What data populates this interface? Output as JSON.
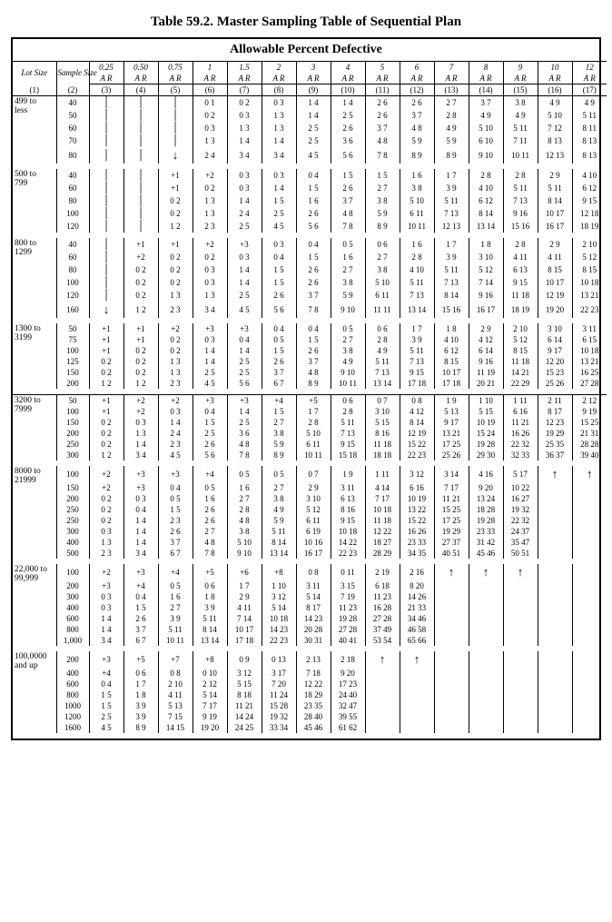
{
  "title": "Table 59.2. Master Sampling Table of Sequential Plan",
  "subtitle": "Allowable Percent Defective",
  "header": {
    "lot": "Lot Size",
    "sample": "Sample Size",
    "ar": "A R"
  },
  "pct_cols": [
    "0.25",
    "0.50",
    "0.75",
    "1",
    "1.5",
    "2",
    "3",
    "4",
    "5",
    "6",
    "7",
    "8",
    "9",
    "10",
    "12"
  ],
  "col_idx": [
    "(1)",
    "(2)",
    "(3)",
    "(4)",
    "(5)",
    "(6)",
    "(7)",
    "(8)",
    "(9)",
    "(10)",
    "(11)",
    "(12)",
    "(13)",
    "(14)",
    "(15)",
    "(16)",
    "(17)"
  ],
  "groups": [
    {
      "lot": "499 to less",
      "rows": [
        {
          "s": "40",
          "v": [
            "|",
            "|",
            "|",
            "0 1",
            "0 2",
            "0 3",
            "1 4",
            "1 4",
            "2 6",
            "2 6",
            "2 7",
            "3 7",
            "3 8",
            "4 9",
            "4 9"
          ]
        },
        {
          "s": "50",
          "v": [
            "|",
            "|",
            "|",
            "0 2",
            "0 3",
            "1 3",
            "1 4",
            "2 5",
            "2 6",
            "3 7",
            "2 8",
            "4 9",
            "4 9",
            "5 10",
            "5 11"
          ]
        },
        {
          "s": "60",
          "v": [
            "|",
            "|",
            "|",
            "0 3",
            "1 3",
            "1 3",
            "2 5",
            "2 6",
            "3 7",
            "4 8",
            "4 9",
            "5 10",
            "5 11",
            "7 12",
            "8 11"
          ]
        },
        {
          "s": "70",
          "v": [
            "|",
            "|",
            "|",
            "1 3",
            "1 4",
            "1 4",
            "2 5",
            "3 6",
            "4 8",
            "5 9",
            "5 9",
            "6 10",
            "7 11",
            "8 13",
            "8 13"
          ]
        },
        {
          "s": "80",
          "v": [
            "|",
            "|",
            "↓",
            "2 4",
            "3 4",
            "3 4",
            "4 5",
            "5 6",
            "7 8",
            "8 9",
            "8 9",
            "9 10",
            "10 11",
            "12 13",
            "8 13"
          ]
        }
      ]
    },
    {
      "lot": "500 to 799",
      "rows": [
        {
          "s": "40",
          "v": [
            "|",
            "|",
            "+1",
            "+2",
            "0 3",
            "0 3",
            "0 4",
            "1 5",
            "1 5",
            "1 6",
            "1 7",
            "2 8",
            "2 8",
            "2 9",
            "4 10"
          ]
        },
        {
          "s": "60",
          "v": [
            "|",
            "|",
            "+1",
            "0 2",
            "0 3",
            "1 4",
            "1 5",
            "2 6",
            "2 7",
            "3 8",
            "3 9",
            "4 10",
            "5 11",
            "5 11",
            "6 12"
          ]
        },
        {
          "s": "80",
          "v": [
            "|",
            "|",
            "0 2",
            "1 3",
            "1 4",
            "1 5",
            "1 6",
            "3 7",
            "3 8",
            "5 10",
            "5 11",
            "6 12",
            "7 13",
            "8 14",
            "9 15"
          ]
        },
        {
          "s": "100",
          "v": [
            "|",
            "|",
            "0 2",
            "1 3",
            "2 4",
            "2 5",
            "2 6",
            "4 8",
            "5 9",
            "6 11",
            "7 13",
            "8 14",
            "9 16",
            "10 17",
            "12 18"
          ]
        },
        {
          "s": "120",
          "v": [
            "|",
            "|",
            "1 2",
            "2 3",
            "2 5",
            "4 5",
            "5 6",
            "7 8",
            "8 9",
            "10 11",
            "12 13",
            "13 14",
            "15 16",
            "16 17",
            "18 19"
          ]
        }
      ]
    },
    {
      "lot": "800 to 1299",
      "rows": [
        {
          "s": "40",
          "v": [
            "|",
            "+1",
            "+1",
            "+2",
            "+3",
            "0 3",
            "0 4",
            "0 5",
            "0 6",
            "1 6",
            "1 7",
            "1 8",
            "2 8",
            "2 9",
            "2 10"
          ]
        },
        {
          "s": "60",
          "v": [
            "|",
            "+2",
            "0 2",
            "0 2",
            "0 3",
            "0 4",
            "1 5",
            "1 6",
            "2 7",
            "2 8",
            "3 9",
            "3 10",
            "4 11",
            "4 11",
            "5 12"
          ]
        },
        {
          "s": "80",
          "v": [
            "|",
            "0 2",
            "0 2",
            "0 3",
            "1 4",
            "1 5",
            "2 6",
            "2 7",
            "3 8",
            "4 10",
            "5 11",
            "5 12",
            "6 13",
            "8 15",
            "8 15"
          ]
        },
        {
          "s": "100",
          "v": [
            "|",
            "0 2",
            "0 2",
            "0 3",
            "1 4",
            "1 5",
            "2 6",
            "3 8",
            "5 10",
            "5 11",
            "7 13",
            "7 14",
            "9 15",
            "10 17",
            "10 18"
          ]
        },
        {
          "s": "120",
          "v": [
            "|",
            "0 2",
            "1 3",
            "1 3",
            "2 5",
            "2 6",
            "3 7",
            "5 9",
            "6 11",
            "7 13",
            "8 14",
            "9 16",
            "11 18",
            "12 19",
            "13 21"
          ]
        },
        {
          "s": "160",
          "v": [
            "↓",
            "1 2",
            "2 3",
            "3 4",
            "4 5",
            "5 6",
            "7 8",
            "9 10",
            "11 11",
            "13 14",
            "15 16",
            "16 17",
            "18 19",
            "19 20",
            "22 23"
          ]
        }
      ]
    },
    {
      "lot": "1300 to 3199",
      "rows": [
        {
          "s": "50",
          "v": [
            "+1",
            "+1",
            "+2",
            "+3",
            "+3",
            "0 4",
            "0 4",
            "0 5",
            "0 6",
            "1 7",
            "1 8",
            "2 9",
            "2 10",
            "3 10",
            "3 11"
          ]
        },
        {
          "s": "75",
          "v": [
            "+1",
            "+1",
            "0 2",
            "0 3",
            "0 4",
            "0 5",
            "1 5",
            "2 7",
            "2 8",
            "3 9",
            "4 10",
            "4 12",
            "5 12",
            "6 14",
            "6 15"
          ]
        },
        {
          "s": "100",
          "v": [
            "+1",
            "0 2",
            "0 2",
            "1 4",
            "1 4",
            "1 5",
            "2 6",
            "3 8",
            "4 9",
            "5 11",
            "6 12",
            "6 14",
            "8 15",
            "9 17",
            "10 18"
          ]
        },
        {
          "s": "125",
          "v": [
            "0 2",
            "0 2",
            "1 3",
            "1 4",
            "2 5",
            "2 6",
            "3 7",
            "4 9",
            "5 11",
            "7 13",
            "8 15",
            "9 16",
            "11 18",
            "12 20",
            "13 21"
          ]
        },
        {
          "s": "150",
          "v": [
            "0 2",
            "0 2",
            "1 3",
            "2 5",
            "2 5",
            "3 7",
            "4 8",
            "9 10",
            "7 13",
            "9 15",
            "10 17",
            "11 19",
            "14 21",
            "15 23",
            "16 25"
          ]
        },
        {
          "s": "200",
          "v": [
            "1 2",
            "1 2",
            "2 3",
            "4 5",
            "5 6",
            "6 7",
            "8 9",
            "10 11",
            "13 14",
            "17 18",
            "17 18",
            "20 21",
            "22 29",
            "25 26",
            "27 28"
          ]
        }
      ]
    }
  ],
  "groups2": [
    {
      "lot": "3200 to 7999",
      "rows": [
        {
          "s": "50",
          "v": [
            "+1",
            "+2",
            "+2",
            "+3",
            "+3",
            "+4",
            "+5",
            "0 6",
            "0 7",
            "0 8",
            "1 9",
            "1 10",
            "1 11",
            "2 11",
            "2 12"
          ]
        },
        {
          "s": "100",
          "v": [
            "+1",
            "+2",
            "0 3",
            "0 4",
            "1 4",
            "1 5",
            "1 7",
            "2 8",
            "3 10",
            "4 12",
            "5 13",
            "5 15",
            "6 16",
            "8 17",
            "9 19"
          ]
        },
        {
          "s": "150",
          "v": [
            "0 2",
            "0 3",
            "1 4",
            "1 5",
            "2 5",
            "2 7",
            "2 8",
            "5 11",
            "5 15",
            "8 14",
            "9 17",
            "10 19",
            "11 21",
            "12 23",
            "15 25"
          ]
        },
        {
          "s": "200",
          "v": [
            "0 2",
            "1 3",
            "2 4",
            "2 5",
            "3 6",
            "3 8",
            "5 10",
            "7 13",
            "8 16",
            "12 19",
            "13 21",
            "15 24",
            "16 26",
            "19 29",
            "21 31"
          ]
        },
        {
          "s": "250",
          "v": [
            "0 2",
            "1 4",
            "2 3",
            "2 6",
            "4 8",
            "5 9",
            "6 11",
            "9 15",
            "11 18",
            "15 22",
            "17 25",
            "19 28",
            "22 32",
            "25 35",
            "28 28"
          ]
        },
        {
          "s": "300",
          "v": [
            "1 2",
            "3 4",
            "4 5",
            "5 6",
            "7 8",
            "8 9",
            "10 11",
            "15 18",
            "18 18",
            "22 23",
            "25 26",
            "29 30",
            "32 33",
            "36 37",
            "39 40"
          ]
        }
      ]
    },
    {
      "lot": "8000 to 21999",
      "rows": [
        {
          "s": "100",
          "v": [
            "+2",
            "+3",
            "+3",
            "+4",
            "0 5",
            "0 5",
            "0 7",
            "1 9",
            "1 11",
            "3 12",
            "3 14",
            "4 16",
            "5 17",
            "↑",
            "↑"
          ]
        },
        {
          "s": "150",
          "v": [
            "+2",
            "+3",
            "0 4",
            "0 5",
            "1 6",
            "2 7",
            "2 9",
            "3 11",
            "4 14",
            "6 16",
            "7 17",
            "9 20",
            "10 22",
            "",
            ""
          ]
        },
        {
          "s": "200",
          "v": [
            "0 2",
            "0 3",
            "0 5",
            "1 6",
            "2 7",
            "3 8",
            "3 10",
            "6 13",
            "7 17",
            "10 19",
            "11 21",
            "13 24",
            "16 27",
            "",
            ""
          ]
        },
        {
          "s": "250",
          "v": [
            "0 2",
            "0 4",
            "1 5",
            "2 6",
            "2 8",
            "4 9",
            "5 12",
            "8 16",
            "10 18",
            "13 22",
            "15 25",
            "18 28",
            "19 32",
            "",
            ""
          ]
        },
        {
          "s": "250",
          "v": [
            "0 2",
            "1 4",
            "2 3",
            "2 6",
            "4 8",
            "5 9",
            "6 11",
            "9 15",
            "11 18",
            "15 22",
            "17 25",
            "19 28",
            "22 32",
            "",
            ""
          ]
        },
        {
          "s": "300",
          "v": [
            "0 3",
            "1 4",
            "2 6",
            "2 7",
            "3 8",
            "5 11",
            "6 19",
            "10 18",
            "12 22",
            "16 26",
            "19 29",
            "23 33",
            "24 37",
            "",
            ""
          ]
        },
        {
          "s": "400",
          "v": [
            "1 3",
            "1 4",
            "3 7",
            "4 8",
            "5 10",
            "8 14",
            "10 16",
            "14 22",
            "18 27",
            "23 33",
            "27 37",
            "31 42",
            "35 47",
            "",
            ""
          ]
        },
        {
          "s": "500",
          "v": [
            "2 3",
            "3 4",
            "6 7",
            "7 8",
            "9 10",
            "13 14",
            "16 17",
            "22 23",
            "28 29",
            "34 35",
            "40 51",
            "45 46",
            "50 51",
            "",
            ""
          ]
        }
      ]
    },
    {
      "lot": "22,000 to 99,999",
      "rows": [
        {
          "s": "100",
          "v": [
            "+2",
            "+3",
            "+4",
            "+5",
            "+6",
            "+8",
            "0 8",
            "0 11",
            "2 19",
            "2 16",
            "↑",
            "↑",
            "↑",
            "",
            ""
          ]
        },
        {
          "s": "200",
          "v": [
            "+3",
            "+4",
            "0 5",
            "0 6",
            "1 7",
            "1 10",
            "3 11",
            "3 15",
            "6 18",
            "8 20",
            "",
            "",
            "",
            "",
            ""
          ]
        },
        {
          "s": "300",
          "v": [
            "0 3",
            "0 4",
            "1 6",
            "1 8",
            "2 9",
            "3 12",
            "5 14",
            "7 19",
            "11 23",
            "14 26",
            "",
            "",
            "",
            "",
            ""
          ]
        },
        {
          "s": "400",
          "v": [
            "0 3",
            "1 5",
            "2 7",
            "3 9",
            "4 11",
            "5 14",
            "8 17",
            "11 23",
            "16 28",
            "21 33",
            "",
            "",
            "",
            "",
            ""
          ]
        },
        {
          "s": "600",
          "v": [
            "1 4",
            "2 6",
            "3 9",
            "5 11",
            "7 14",
            "10 18",
            "14 23",
            "19 28",
            "27 28",
            "34 46",
            "",
            "",
            "",
            "",
            ""
          ]
        },
        {
          "s": "800",
          "v": [
            "1 4",
            "3 7",
            "5 11",
            "8 14",
            "10 17",
            "14 23",
            "20 28",
            "27 28",
            "37 49",
            "46 58",
            "",
            "",
            "",
            "",
            ""
          ]
        },
        {
          "s": "1,000",
          "v": [
            "3 4",
            "6 7",
            "10 11",
            "13 14",
            "17 18",
            "22 23",
            "30 31",
            "40 41",
            "53 54",
            "65 66",
            "",
            "",
            "",
            "",
            ""
          ]
        }
      ]
    },
    {
      "lot": "100,0000 and up",
      "rows": [
        {
          "s": "200",
          "v": [
            "+3",
            "+5",
            "+7",
            "+8",
            "0 9",
            "0 13",
            "2 13",
            "2 18",
            "↑",
            "↑",
            "",
            "",
            "",
            "",
            ""
          ]
        },
        {
          "s": "400",
          "v": [
            "+4",
            "0 6",
            "0 8",
            "0 10",
            "3 12",
            "3 17",
            "7 18",
            "9 20",
            "",
            "",
            "",
            "",
            "",
            "",
            ""
          ]
        },
        {
          "s": "600",
          "v": [
            "0 4",
            "1 7",
            "2 10",
            "2 12",
            "5 15",
            "7 20",
            "12 22",
            "17 23",
            "",
            "",
            "",
            "",
            "",
            "",
            ""
          ]
        },
        {
          "s": "800",
          "v": [
            "1 5",
            "1 8",
            "4 11",
            "5 14",
            "8 18",
            "11 24",
            "18 29",
            "24 40",
            "",
            "",
            "",
            "",
            "",
            "",
            ""
          ]
        },
        {
          "s": "1000",
          "v": [
            "1 5",
            "3 9",
            "5 13",
            "7 17",
            "11 21",
            "15 28",
            "23 35",
            "32 47",
            "",
            "",
            "",
            "",
            "",
            "",
            ""
          ]
        },
        {
          "s": "1200",
          "v": [
            "2 5",
            "3 9",
            "7 15",
            "9 19",
            "14 24",
            "19 32",
            "28 40",
            "39 55",
            "",
            "",
            "",
            "",
            "",
            "",
            ""
          ]
        },
        {
          "s": "1600",
          "v": [
            "4 5",
            "8 9",
            "14 15",
            "19 20",
            "24 25",
            "33 34",
            "45 46",
            "61 62",
            "",
            "",
            "",
            "",
            "",
            "",
            ""
          ]
        }
      ]
    }
  ]
}
